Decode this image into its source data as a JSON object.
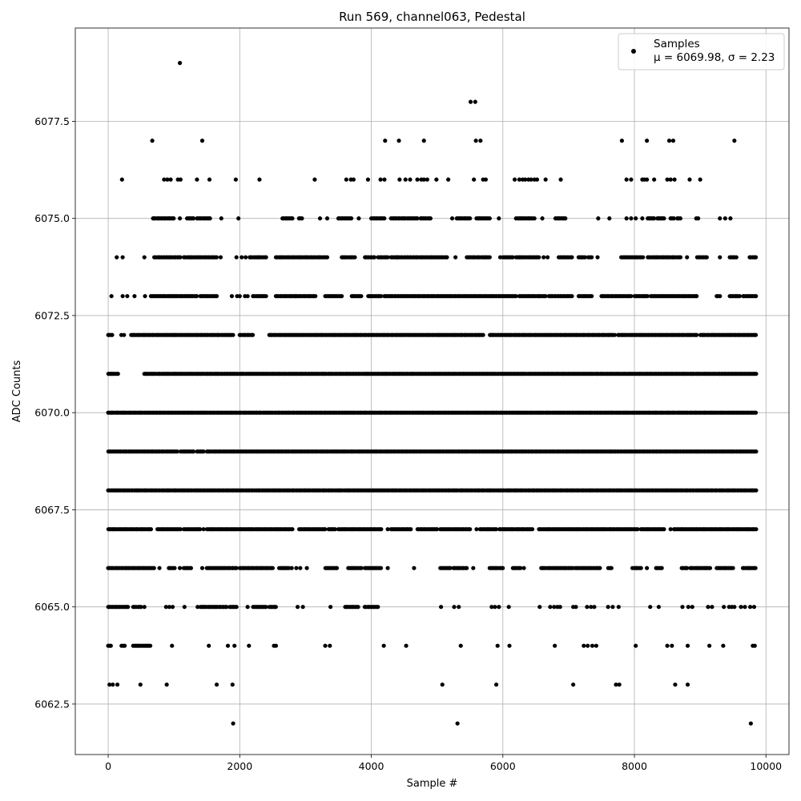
{
  "chart_data": {
    "type": "scatter",
    "title": "Run 569, channel063, Pedestal",
    "xlabel": "Sample #",
    "ylabel": "ADC Counts",
    "xlim": [
      -500,
      10350
    ],
    "ylim": [
      6061.2,
      6079.9
    ],
    "xticks": [
      0,
      2000,
      4000,
      6000,
      8000,
      10000
    ],
    "xtick_labels": [
      "0",
      "2000",
      "4000",
      "6000",
      "8000",
      "10000"
    ],
    "yticks": [
      6062.5,
      6065.0,
      6067.5,
      6070.0,
      6072.5,
      6075.0,
      6077.5
    ],
    "ytick_labels": [
      "6062.5",
      "6065.0",
      "6067.5",
      "6070.0",
      "6072.5",
      "6075.0",
      "6077.5"
    ],
    "grid": true,
    "marker_color": "#000000",
    "legend": {
      "position": "top-right",
      "entries": [
        {
          "name": "Samples",
          "stat_line": "μ = 6069.98, σ = 2.23"
        }
      ]
    },
    "series": [
      {
        "name": "Samples",
        "n_samples": 9850,
        "level_ranges": [
          {
            "y": 6062,
            "x": [
              1900,
              5310,
              9770
            ]
          },
          {
            "y": 6063,
            "x": [
              20,
              70,
              140,
              490,
              890,
              1650,
              1890,
              5080,
              5900,
              7070,
              7720,
              7770,
              8620,
              8810
            ]
          },
          {
            "y": 6064,
            "ranges": [
              [
                0,
                40
              ],
              [
                200,
                250
              ],
              [
                380,
                640
              ]
            ],
            "x": [
              970,
              1530,
              1820,
              1920,
              2140,
              2520,
              2550,
              3300,
              3370,
              4190,
              4530,
              5360,
              5920,
              6100,
              6790,
              7230,
              7290,
              7360,
              7420,
              8020,
              8500,
              8570,
              8810,
              9140,
              9350,
              9800,
              9830
            ]
          },
          {
            "y": 6065,
            "ranges": [
              [
                0,
                300
              ],
              [
                380,
                500
              ],
              [
                1400,
                1600
              ],
              [
                1620,
                1800
              ],
              [
                1850,
                1950
              ],
              [
                2200,
                2400
              ],
              [
                2450,
                2550
              ],
              [
                3600,
                3800
              ],
              [
                3900,
                4100
              ]
            ],
            "x": [
              550,
              880,
              930,
              980,
              1160,
              1360,
              2120,
              2880,
              2960,
              3380,
              5060,
              5260,
              5330,
              5830,
              5880,
              5940,
              6090,
              6560,
              6720,
              6780,
              6830,
              6870,
              7070,
              7110,
              7280,
              7340,
              7390,
              7600,
              7670,
              7760,
              8240,
              8370,
              8730,
              8820,
              8880,
              9120,
              9180,
              9360,
              9440,
              9480,
              9520,
              9620,
              9680,
              9760,
              9820
            ]
          },
          {
            "y": 6066,
            "ranges": [
              [
                0,
                700
              ],
              [
                920,
                1010
              ],
              [
                1150,
                1260
              ],
              [
                1500,
                1950
              ],
              [
                2000,
                2500
              ],
              [
                2600,
                2750
              ],
              [
                3300,
                3480
              ],
              [
                3650,
                3850
              ],
              [
                3900,
                4150
              ],
              [
                5050,
                5200
              ],
              [
                5250,
                5450
              ],
              [
                5800,
                6000
              ],
              [
                6150,
                6270
              ],
              [
                6580,
                6650
              ],
              [
                6680,
                7060
              ],
              [
                7100,
                7480
              ],
              [
                7600,
                7650
              ],
              [
                8000,
                8100
              ],
              [
                8330,
                8420
              ],
              [
                8720,
                8800
              ],
              [
                8850,
                9150
              ],
              [
                9250,
                9500
              ],
              [
                9650,
                9840
              ]
            ],
            "x": [
              780,
              1090,
              1430,
              2790,
              2860,
              2920,
              3020,
              4250,
              4650,
              5550,
              6320,
              7970,
              8190
            ]
          },
          {
            "y": 6067,
            "ranges": [
              [
                0,
                650
              ],
              [
                770,
                1100
              ],
              [
                1150,
                1400
              ],
              [
                1500,
                2800
              ],
              [
                2900,
                3300
              ],
              [
                3350,
                3450
              ],
              [
                3500,
                4150
              ],
              [
                4300,
                4600
              ],
              [
                4700,
                5000
              ],
              [
                5050,
                5500
              ],
              [
                5650,
                5900
              ],
              [
                5950,
                6450
              ],
              [
                6550,
                8050
              ],
              [
                8100,
                8450
              ],
              [
                8600,
                9850
              ]
            ],
            "x": [
              750,
              1450,
              4250,
              5600,
              8550
            ]
          },
          {
            "y": 6068,
            "ranges": [
              [
                0,
                9850
              ]
            ]
          },
          {
            "y": 6069,
            "ranges": [
              [
                0,
                1050
              ],
              [
                1100,
                1300
              ],
              [
                1350,
                1450
              ],
              [
                1500,
                9850
              ]
            ]
          },
          {
            "y": 6070,
            "ranges": [
              [
                0,
                9850
              ]
            ]
          },
          {
            "y": 6071,
            "ranges": [
              [
                0,
                150
              ],
              [
                550,
                9850
              ]
            ]
          },
          {
            "y": 6072,
            "ranges": [
              [
                0,
                60
              ],
              [
                350,
                1900
              ],
              [
                2000,
                2200
              ],
              [
                2450,
                5700
              ],
              [
                5800,
                7700
              ],
              [
                7750,
                8950
              ],
              [
                9000,
                9850
              ]
            ],
            "x": [
              200,
              240
            ]
          },
          {
            "y": 6073,
            "ranges": [
              [
                650,
                1000
              ],
              [
                1000,
                1350
              ],
              [
                1400,
                1650
              ],
              [
                2200,
                2400
              ],
              [
                2550,
                2850
              ],
              [
                2850,
                3150
              ],
              [
                3300,
                3550
              ],
              [
                3700,
                3850
              ],
              [
                3950,
                4150
              ],
              [
                4200,
                6200
              ],
              [
                6250,
                6650
              ],
              [
                6700,
                7050
              ],
              [
                7150,
                7350
              ],
              [
                7500,
                7950
              ],
              [
                8000,
                8200
              ],
              [
                8250,
                8950
              ],
              [
                9250,
                9300
              ],
              [
                9450,
                9600
              ],
              [
                9650,
                9850
              ]
            ],
            "x": [
              50,
              220,
              290,
              400,
              560,
              1880,
              1960,
              2000,
              2080,
              2120
            ]
          },
          {
            "y": 6074,
            "ranges": [
              [
                700,
                1100
              ],
              [
                1150,
                1650
              ],
              [
                2150,
                2400
              ],
              [
                2550,
                3300
              ],
              [
                3550,
                3750
              ],
              [
                3900,
                4050
              ],
              [
                4100,
                4250
              ],
              [
                4300,
                5150
              ],
              [
                5450,
                5800
              ],
              [
                6000,
                6150
              ],
              [
                6200,
                6550
              ],
              [
                6850,
                7050
              ],
              [
                7150,
                7250
              ],
              [
                7300,
                7350
              ],
              [
                7800,
                8100
              ],
              [
                8200,
                8700
              ],
              [
                8950,
                9100
              ],
              [
                9450,
                9550
              ],
              [
                9750,
                9850
              ]
            ],
            "x": [
              130,
              220,
              550,
              1710,
              1950,
              2030,
              2090,
              3330,
              4390,
              5280,
              5960,
              6620,
              6680,
              7440,
              8130,
              8800,
              9300
            ]
          },
          {
            "y": 6075,
            "ranges": [
              [
                680,
                1000
              ],
              [
                1200,
                1300
              ],
              [
                1350,
                1550
              ],
              [
                2650,
                2800
              ],
              [
                2900,
                2950
              ],
              [
                3500,
                3700
              ],
              [
                4000,
                4200
              ],
              [
                4300,
                4700
              ],
              [
                4750,
                4900
              ],
              [
                5300,
                5500
              ],
              [
                5600,
                5800
              ],
              [
                6200,
                6450
              ],
              [
                6800,
                6950
              ],
              [
                8200,
                8300
              ],
              [
                8350,
                8450
              ],
              [
                8550,
                8600
              ],
              [
                8650,
                8700
              ]
            ],
            "x": [
              1090,
              1720,
              1980,
              3220,
              3330,
              3810,
              5230,
              5940,
              6480,
              6600,
              7450,
              7620,
              7880,
              7950,
              8020,
              8120,
              8940,
              8970,
              9300,
              9380,
              9460
            ]
          },
          {
            "y": 6076,
            "x": [
              210,
              850,
              900,
              950,
              1060,
              1100,
              1350,
              1540,
              1940,
              2300,
              3140,
              3620,
              3690,
              3730,
              3950,
              4140,
              4200,
              4430,
              4520,
              4590,
              4700,
              4760,
              4800,
              4850,
              4990,
              5170,
              5560,
              5700,
              5740,
              6180,
              6250,
              6300,
              6340,
              6390,
              6430,
              6480,
              6520,
              6650,
              6880,
              7880,
              7950,
              8120,
              8150,
              8190,
              8300,
              8500,
              8550,
              8610,
              8840,
              9000
            ]
          },
          {
            "y": 6077,
            "x": [
              670,
              1430,
              4210,
              4420,
              4800,
              5590,
              5660,
              7810,
              8190,
              8530,
              8590,
              9520
            ]
          },
          {
            "y": 6078,
            "x": [
              5510,
              5580
            ]
          },
          {
            "y": 6079,
            "x": [
              1090
            ]
          }
        ]
      }
    ]
  }
}
